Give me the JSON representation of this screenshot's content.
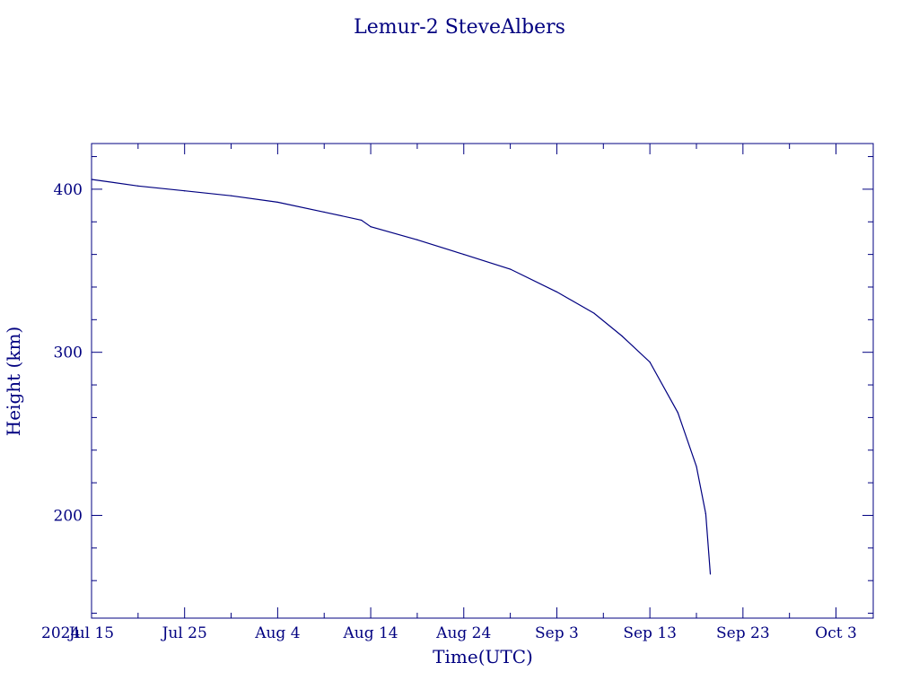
{
  "chart_data": {
    "type": "line",
    "title": "Lemur-2 SteveAlbers",
    "xlabel": "Time(UTC)",
    "ylabel": "Height (km)",
    "year_label": "2024",
    "xlim": [
      "2024-07-15",
      "2024-10-07"
    ],
    "ylim": [
      137,
      428
    ],
    "x_ticks": [
      {
        "date": "2024-07-15",
        "label": "Jul 15"
      },
      {
        "date": "2024-07-25",
        "label": "Jul 25"
      },
      {
        "date": "2024-08-04",
        "label": "Aug  4"
      },
      {
        "date": "2024-08-14",
        "label": "Aug 14"
      },
      {
        "date": "2024-08-24",
        "label": "Aug 24"
      },
      {
        "date": "2024-09-03",
        "label": "Sep  3"
      },
      {
        "date": "2024-09-13",
        "label": "Sep 13"
      },
      {
        "date": "2024-09-23",
        "label": "Sep 23"
      },
      {
        "date": "2024-10-03",
        "label": "Oct  3"
      }
    ],
    "y_ticks": [
      {
        "value": 200,
        "label": "200"
      },
      {
        "value": 300,
        "label": "300"
      },
      {
        "value": 400,
        "label": "400"
      }
    ],
    "grid": false,
    "legend": "none",
    "colors": {
      "line": "#000080",
      "axes": "#000080",
      "text": "#000080",
      "background": "#ffffff"
    },
    "series": [
      {
        "points": [
          {
            "x": "2024-07-15",
            "y": 406
          },
          {
            "x": "2024-07-20",
            "y": 402
          },
          {
            "x": "2024-07-25",
            "y": 399
          },
          {
            "x": "2024-07-30",
            "y": 396
          },
          {
            "x": "2024-08-04",
            "y": 392
          },
          {
            "x": "2024-08-09",
            "y": 386
          },
          {
            "x": "2024-08-13",
            "y": 381
          },
          {
            "x": "2024-08-14",
            "y": 377
          },
          {
            "x": "2024-08-19",
            "y": 369
          },
          {
            "x": "2024-08-24",
            "y": 360
          },
          {
            "x": "2024-08-29",
            "y": 351
          },
          {
            "x": "2024-09-03",
            "y": 337
          },
          {
            "x": "2024-09-07",
            "y": 324
          },
          {
            "x": "2024-09-10",
            "y": 310
          },
          {
            "x": "2024-09-13",
            "y": 294
          },
          {
            "x": "2024-09-16",
            "y": 263
          },
          {
            "x": "2024-09-18",
            "y": 230
          },
          {
            "x": "2024-09-19",
            "y": 201
          },
          {
            "x": "2024-09-19T12:00",
            "y": 164
          }
        ]
      }
    ]
  }
}
